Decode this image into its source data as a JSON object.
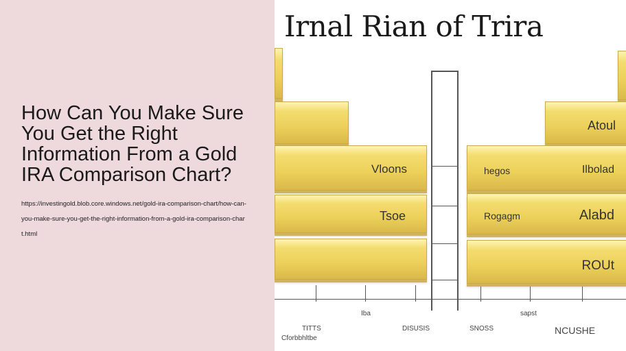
{
  "headline": "How Can You Make Sure You Get the Right Information From a Gold IRA Comparison Chart?",
  "source_url": "https://investingold.blob.core.windows.net/gold-ira-comparison-chart/how-can-you-make-sure-you-get-the-right-information-from-a-gold-ira-comparison-chart.html",
  "image": {
    "title": "Irnal Rian of Trira",
    "bar_labels": {
      "left_1": "Vloons",
      "left_2": "Tsoe",
      "right_top": "Atoul",
      "right_1a": "hegos",
      "right_1b": "Ilbolad",
      "right_2a": "Rogagm",
      "right_2b": "Alabd",
      "right_3": "ROUt"
    },
    "axis_labels": [
      "TITTS",
      "Cforbbhltbe",
      "Iba",
      "DISUSIS",
      "SNOSS",
      "sapst",
      "NCUSHE"
    ]
  },
  "colors": {
    "left_panel_bg": "#eed9dc",
    "gold": "#ecd05a"
  }
}
